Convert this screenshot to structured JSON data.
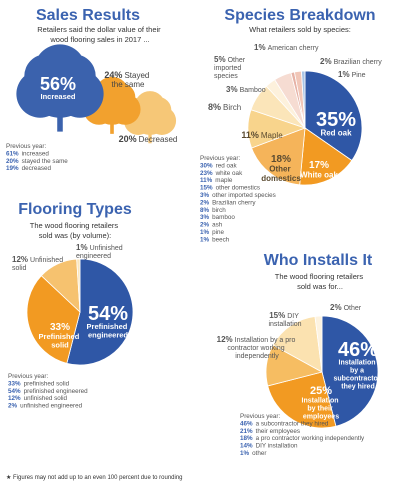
{
  "chart_data": [
    {
      "type": "pictogram",
      "title": "Sales Results",
      "subtitle": "Retailers said the dollar value of their wood flooring sales in 2017 ...",
      "categories": [
        "Increased",
        "Stayed the same",
        "Decreased"
      ],
      "values": [
        56,
        24,
        20
      ],
      "value_labels": [
        "56%",
        "24%",
        "20%"
      ],
      "colors": [
        "#3b62ad",
        "#f2a12e",
        "#f6c777"
      ],
      "previous_year": {
        "title": "Previous year:",
        "items": [
          {
            "percent": "61%",
            "label": "increased"
          },
          {
            "percent": "20%",
            "label": "stayed the same"
          },
          {
            "percent": "19%",
            "label": "decreased"
          }
        ]
      }
    },
    {
      "type": "pie",
      "title": "Species Breakdown",
      "subtitle": "What retailers sold by species:",
      "categories": [
        "Red oak",
        "White oak",
        "Other domestics",
        "Maple",
        "Birch",
        "Bamboo",
        "Other imported species",
        "American cherry",
        "Brazilian cherry",
        "Pine"
      ],
      "values": [
        35,
        17,
        18,
        11,
        8,
        3,
        5,
        1,
        2,
        1
      ],
      "value_labels": [
        "35%",
        "17%",
        "18%",
        "11%",
        "8%",
        "3%",
        "5%",
        "1%",
        "2%",
        "1%"
      ],
      "colors": [
        "#2f57a6",
        "#f29a22",
        "#f5b45a",
        "#f8d48c",
        "#fbe5b9",
        "#fdf1dc",
        "#f6dcd2",
        "#e6b2a6",
        "#f1c6b7",
        "#a9c5e6"
      ],
      "previous_year": {
        "title": "Previous year:",
        "items": [
          {
            "percent": "30%",
            "label": "red oak"
          },
          {
            "percent": "23%",
            "label": "white oak"
          },
          {
            "percent": "11%",
            "label": "maple"
          },
          {
            "percent": "15%",
            "label": "other domestics"
          },
          {
            "percent": "3%",
            "label": "other imported species"
          },
          {
            "percent": "2%",
            "label": "Brazilian cherry"
          },
          {
            "percent": "8%",
            "label": "birch"
          },
          {
            "percent": "3%",
            "label": "bamboo"
          },
          {
            "percent": "2%",
            "label": "ash"
          },
          {
            "percent": "1%",
            "label": "pine"
          },
          {
            "percent": "1%",
            "label": "beech"
          }
        ]
      }
    },
    {
      "type": "pie",
      "title": "Flooring Types",
      "subtitle": "The wood flooring retailers sold was (by volume):",
      "categories": [
        "Prefinished engineered",
        "Prefinished solid",
        "Unfinished solid",
        "Unfinished engineered"
      ],
      "values": [
        54,
        33,
        12,
        1
      ],
      "value_labels": [
        "54%",
        "33%",
        "12%",
        "1%"
      ],
      "colors": [
        "#2f57a6",
        "#f29a22",
        "#f6c26f",
        "#fbe6bb"
      ],
      "previous_year": {
        "title": "Previous year:",
        "items": [
          {
            "percent": "33%",
            "label": "prefinished solid"
          },
          {
            "percent": "54%",
            "label": "prefinished engineered"
          },
          {
            "percent": "12%",
            "label": "unfinished solid"
          },
          {
            "percent": "2%",
            "label": "unfinished engineered"
          }
        ]
      }
    },
    {
      "type": "pie",
      "title": "Who Installs It",
      "subtitle": "The wood flooring retailers sold was for...",
      "categories": [
        "Installation by a subcontractor they hired",
        "Installation by their employees",
        "Installation by a pro contractor working independently",
        "DIY installation",
        "Other"
      ],
      "values": [
        46,
        25,
        12,
        15,
        2
      ],
      "value_labels": [
        "46%",
        "25%",
        "12%",
        "15%",
        "2%"
      ],
      "colors": [
        "#2f57a6",
        "#f29a22",
        "#f6bd62",
        "#fbe2b0",
        "#fdf3e0"
      ],
      "previous_year": {
        "title": "Previous year:",
        "items": [
          {
            "percent": "46%",
            "label": "a subcontractor they hired"
          },
          {
            "percent": "21%",
            "label": "their employees"
          },
          {
            "percent": "18%",
            "label": "a pro contractor working independently"
          },
          {
            "percent": "14%",
            "label": "DIY installation"
          },
          {
            "percent": "1%",
            "label": "other"
          }
        ]
      }
    }
  ],
  "footnote": "★ Figures may not add up to an even 100 percent due to rounding"
}
